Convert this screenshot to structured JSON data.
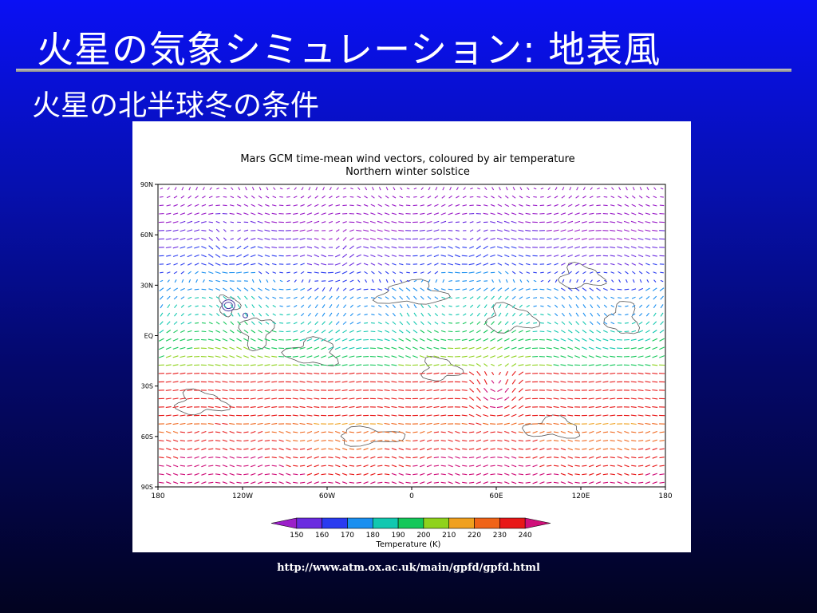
{
  "slide": {
    "title": "火星の気象シミュレーション: 地表風",
    "subtitle": "火星の北半球冬の条件",
    "source_url": "http://www.atm.ox.ac.uk/main/gpfd/gpfd.html"
  },
  "chart_data": {
    "type": "map-vector-field",
    "title": "Mars GCM time-mean wind vectors, coloured by air temperature",
    "subtitle": "Northern winter solstice",
    "x_ticks": [
      "180",
      "120W",
      "60W",
      "0",
      "60E",
      "120E",
      "180"
    ],
    "y_ticks": [
      "90N",
      "60N",
      "30N",
      "EQ",
      "30S",
      "60S",
      "90S"
    ],
    "xlim": [
      -180,
      180
    ],
    "ylim": [
      -90,
      90
    ],
    "colorbar": {
      "label": "Temperature (K)",
      "ticks": [
        "150",
        "160",
        "170",
        "180",
        "190",
        "200",
        "210",
        "220",
        "230",
        "240"
      ],
      "colors": [
        "#9b1fc9",
        "#6a2be0",
        "#2a3bf0",
        "#1a8ff0",
        "#12c8b0",
        "#14c85a",
        "#8fd21c",
        "#f0a01e",
        "#f06418",
        "#e81818",
        "#d0107a"
      ]
    },
    "vector_grid": {
      "lon_step_deg": 5,
      "lat_step_deg": 5
    },
    "notable_features": [
      {
        "name": "cyclonic eddy",
        "lon": 60,
        "lat": -35
      },
      {
        "name": "Olympus Mons contours",
        "lon": -130,
        "lat": 18
      }
    ]
  }
}
